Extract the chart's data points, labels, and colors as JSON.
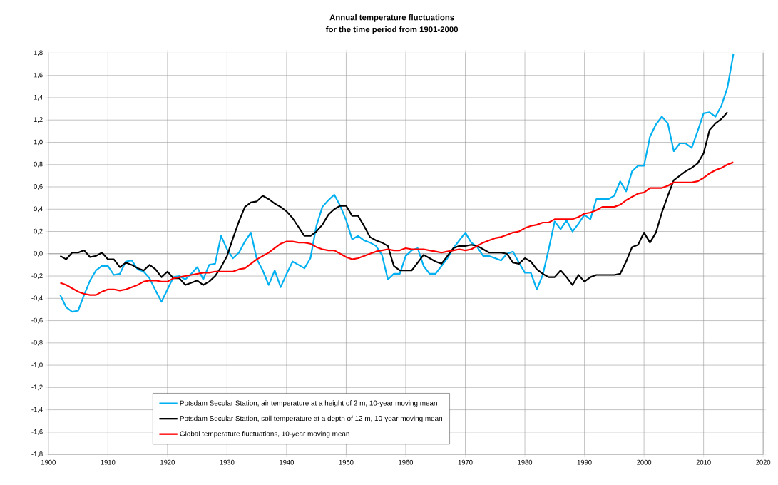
{
  "chart_data": {
    "type": "line",
    "title": "Annual temperature fluctuations",
    "subtitle": "for the time period from 1901-2000",
    "x": [
      1902,
      1903,
      1904,
      1905,
      1906,
      1907,
      1908,
      1909,
      1910,
      1911,
      1912,
      1913,
      1914,
      1915,
      1916,
      1917,
      1918,
      1919,
      1920,
      1921,
      1922,
      1923,
      1924,
      1925,
      1926,
      1927,
      1928,
      1929,
      1930,
      1931,
      1932,
      1933,
      1934,
      1935,
      1936,
      1937,
      1938,
      1939,
      1940,
      1941,
      1942,
      1943,
      1944,
      1945,
      1946,
      1947,
      1948,
      1949,
      1950,
      1951,
      1952,
      1953,
      1954,
      1955,
      1956,
      1957,
      1958,
      1959,
      1960,
      1961,
      1962,
      1963,
      1964,
      1965,
      1966,
      1967,
      1968,
      1969,
      1970,
      1971,
      1972,
      1973,
      1974,
      1975,
      1976,
      1977,
      1978,
      1979,
      1980,
      1981,
      1982,
      1983,
      1984,
      1985,
      1986,
      1987,
      1988,
      1989,
      1990,
      1991,
      1992,
      1993,
      1994,
      1995,
      1996,
      1997,
      1998,
      1999,
      2000,
      2001,
      2002,
      2003,
      2004,
      2005,
      2006,
      2007,
      2008,
      2009,
      2010,
      2011,
      2012,
      2013,
      2014,
      2015
    ],
    "series": [
      {
        "name": "Potsdam Secular Station, air temperature at a height of 2 m, 10-year moving mean",
        "color": "#00b0f0",
        "values": [
          -0.37,
          -0.48,
          -0.52,
          -0.51,
          -0.37,
          -0.24,
          -0.15,
          -0.11,
          -0.11,
          -0.19,
          -0.18,
          -0.07,
          -0.06,
          -0.14,
          -0.16,
          -0.22,
          -0.33,
          -0.43,
          -0.32,
          -0.21,
          -0.2,
          -0.23,
          -0.18,
          -0.12,
          -0.23,
          -0.1,
          -0.09,
          0.16,
          0.04,
          -0.04,
          0.01,
          0.11,
          0.19,
          -0.05,
          -0.15,
          -0.28,
          -0.15,
          -0.3,
          -0.18,
          -0.07,
          -0.1,
          -0.13,
          -0.04,
          0.25,
          0.42,
          0.48,
          0.53,
          0.43,
          0.3,
          0.13,
          0.16,
          0.12,
          0.1,
          0.07,
          -0.01,
          -0.23,
          -0.18,
          -0.18,
          -0.02,
          0.03,
          0.05,
          -0.11,
          -0.18,
          -0.18,
          -0.11,
          -0.04,
          0.05,
          0.12,
          0.19,
          0.1,
          0.06,
          -0.02,
          -0.02,
          -0.04,
          -0.06,
          0.0,
          0.02,
          -0.08,
          -0.17,
          -0.17,
          -0.32,
          -0.19,
          0.04,
          0.29,
          0.22,
          0.3,
          0.2,
          0.27,
          0.35,
          0.31,
          0.49,
          0.49,
          0.49,
          0.52,
          0.65,
          0.56,
          0.74,
          0.79,
          0.79,
          1.05,
          1.16,
          1.23,
          1.17,
          0.92,
          0.99,
          0.99,
          0.95,
          1.1,
          1.26,
          1.27,
          1.23,
          1.33,
          1.49,
          1.79
        ]
      },
      {
        "name": "Potsdam Secular Station, soil temperature at a depth of 12 m, 10-year moving mean",
        "color": "#000000",
        "values": [
          -0.02,
          -0.05,
          0.01,
          0.01,
          0.03,
          -0.03,
          -0.02,
          0.01,
          -0.05,
          -0.05,
          -0.12,
          -0.08,
          -0.1,
          -0.13,
          -0.15,
          -0.1,
          -0.14,
          -0.21,
          -0.16,
          -0.22,
          -0.22,
          -0.28,
          -0.26,
          -0.24,
          -0.28,
          -0.25,
          -0.2,
          -0.12,
          -0.02,
          0.14,
          0.29,
          0.42,
          0.46,
          0.47,
          0.52,
          0.49,
          0.45,
          0.42,
          0.38,
          0.32,
          0.24,
          0.16,
          0.16,
          0.2,
          0.26,
          0.35,
          0.4,
          0.43,
          0.43,
          0.34,
          0.34,
          0.25,
          0.15,
          0.12,
          0.1,
          0.07,
          -0.11,
          -0.15,
          -0.15,
          -0.15,
          -0.08,
          -0.01,
          -0.04,
          -0.07,
          -0.09,
          -0.02,
          0.05,
          0.07,
          0.07,
          0.08,
          0.07,
          0.04,
          0.01,
          0.01,
          0.01,
          0.0,
          -0.08,
          -0.09,
          -0.04,
          -0.07,
          -0.14,
          -0.18,
          -0.21,
          -0.21,
          -0.15,
          -0.21,
          -0.28,
          -0.19,
          -0.25,
          -0.21,
          -0.19,
          -0.19,
          -0.19,
          -0.19,
          -0.18,
          -0.07,
          0.06,
          0.08,
          0.19,
          0.1,
          0.19,
          0.37,
          0.52,
          0.66,
          0.7,
          0.74,
          0.77,
          0.81,
          0.9,
          1.11,
          1.17,
          1.21,
          1.27,
          null
        ]
      },
      {
        "name": "Global temperature fluctuations, 10-year moving mean",
        "color": "#ff0000",
        "values": [
          -0.26,
          -0.28,
          -0.31,
          -0.34,
          -0.36,
          -0.37,
          -0.37,
          -0.34,
          -0.32,
          -0.32,
          -0.33,
          -0.32,
          -0.3,
          -0.28,
          -0.25,
          -0.24,
          -0.24,
          -0.25,
          -0.25,
          -0.22,
          -0.21,
          -0.2,
          -0.19,
          -0.18,
          -0.17,
          -0.17,
          -0.16,
          -0.16,
          -0.16,
          -0.16,
          -0.14,
          -0.13,
          -0.09,
          -0.05,
          -0.02,
          0.01,
          0.05,
          0.09,
          0.11,
          0.11,
          0.1,
          0.1,
          0.09,
          0.06,
          0.04,
          0.03,
          0.03,
          0.0,
          -0.03,
          -0.05,
          -0.04,
          -0.02,
          0.0,
          0.02,
          0.03,
          0.04,
          0.03,
          0.03,
          0.05,
          0.04,
          0.04,
          0.04,
          0.03,
          0.02,
          0.01,
          0.02,
          0.03,
          0.04,
          0.03,
          0.04,
          0.07,
          0.1,
          0.12,
          0.14,
          0.15,
          0.17,
          0.19,
          0.2,
          0.23,
          0.25,
          0.26,
          0.28,
          0.28,
          0.31,
          0.31,
          0.31,
          0.31,
          0.33,
          0.36,
          0.37,
          0.39,
          0.42,
          0.42,
          0.42,
          0.44,
          0.48,
          0.51,
          0.54,
          0.55,
          0.59,
          0.59,
          0.59,
          0.61,
          0.64,
          0.64,
          0.64,
          0.64,
          0.65,
          0.68,
          0.72,
          0.75,
          0.77,
          0.8,
          0.82
        ]
      }
    ],
    "xlim": [
      1900,
      2020
    ],
    "xticks": [
      1900,
      1910,
      1920,
      1930,
      1940,
      1950,
      1960,
      1970,
      1980,
      1990,
      2000,
      2010,
      2020
    ],
    "ylim": [
      -1.8,
      1.8
    ],
    "yticks": [
      {
        "value": -1.8,
        "label": "-1,8"
      },
      {
        "value": -1.6,
        "label": "-1,6"
      },
      {
        "value": -1.4,
        "label": "-1,4"
      },
      {
        "value": -1.2,
        "label": "-1,2"
      },
      {
        "value": -1.0,
        "label": "-1,0"
      },
      {
        "value": -0.8,
        "label": "-0,8"
      },
      {
        "value": -0.6,
        "label": "-0,6"
      },
      {
        "value": -0.4,
        "label": "-0,4"
      },
      {
        "value": -0.2,
        "label": "-0,2"
      },
      {
        "value": 0.0,
        "label": "0,0"
      },
      {
        "value": 0.2,
        "label": "0,2"
      },
      {
        "value": 0.4,
        "label": "0,4"
      },
      {
        "value": 0.6,
        "label": "0,6"
      },
      {
        "value": 0.8,
        "label": "0,8"
      },
      {
        "value": 1.0,
        "label": "1,0"
      },
      {
        "value": 1.2,
        "label": "1,2"
      },
      {
        "value": 1.4,
        "label": "1,4"
      },
      {
        "value": 1.6,
        "label": "1,6"
      },
      {
        "value": 1.8,
        "label": "1,8"
      }
    ],
    "grid": true,
    "legend": "bottom"
  }
}
